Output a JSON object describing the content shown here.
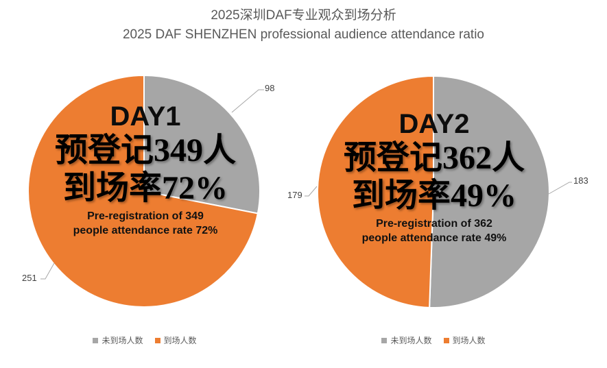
{
  "title": {
    "zh": "2025深圳DAF专业观众到场分析",
    "en": "2025 DAF SHENZHEN professional audience attendance ratio"
  },
  "legend": {
    "items": [
      {
        "label": "未到场人数",
        "color": "#A6A6A6"
      },
      {
        "label": "到场人数",
        "color": "#ED7D31"
      }
    ]
  },
  "colors": {
    "no_show_gray": "#A6A6A6",
    "attended_orange": "#ED7D31",
    "title_gray": "#595959",
    "leader_line_gray": "#A6A6A6",
    "data_label_gray": "#3F3F3F"
  },
  "chart_data": [
    {
      "type": "pie",
      "name": "DAY1",
      "categories": [
        "未到场人数",
        "到场人数"
      ],
      "values": [
        98,
        251
      ],
      "colors": [
        "#A6A6A6",
        "#ED7D31"
      ],
      "start_angle_deg": 0,
      "direction": "clockwise",
      "slice_border": "#FFFFFF",
      "center_text": {
        "day": "DAY1",
        "zh_line1": "预登记349人",
        "zh_line2": "到场率72%",
        "en_line1": "Pre-registration of 349",
        "en_line2": "people attendance rate 72%"
      },
      "total": 349,
      "attendance_rate": "72%"
    },
    {
      "type": "pie",
      "name": "DAY2",
      "categories": [
        "未到场人数",
        "到场人数"
      ],
      "values": [
        183,
        179
      ],
      "colors": [
        "#A6A6A6",
        "#ED7D31"
      ],
      "start_angle_deg": 0,
      "direction": "clockwise",
      "slice_border": "#FFFFFF",
      "center_text": {
        "day": "DAY2",
        "zh_line1": "预登记362人",
        "zh_line2": "到场率49%",
        "en_line1": "Pre-registration of 362",
        "en_line2": "people attendance rate 49%"
      },
      "total": 362,
      "attendance_rate": "49%"
    }
  ]
}
